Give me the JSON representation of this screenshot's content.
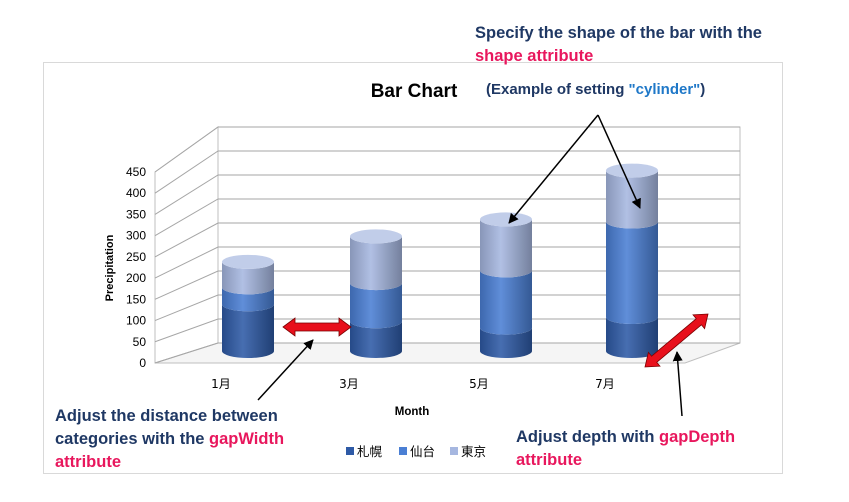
{
  "chart_data": {
    "type": "bar",
    "variant": "stacked-3d-cylinder",
    "title": "Bar Chart",
    "xlabel": "Month",
    "ylabel": "Precipitation",
    "categories": [
      "1月",
      "3月",
      "5月",
      "7月"
    ],
    "series": [
      {
        "name": "札幌",
        "values": [
          110,
          70,
          55,
          80
        ],
        "color": "#2e5aa6"
      },
      {
        "name": "仙台",
        "values": [
          40,
          90,
          135,
          225
        ],
        "color": "#4a7fd4"
      },
      {
        "name": "東京",
        "values": [
          60,
          110,
          120,
          120
        ],
        "color": "#a6b7e0"
      }
    ],
    "ylim": [
      0,
      450
    ],
    "yticks": [
      "0",
      "50",
      "100",
      "150",
      "200",
      "250",
      "300",
      "350",
      "400",
      "450"
    ],
    "grid": true,
    "legend_position": "bottom"
  },
  "annotations": {
    "shape_line1": "Specify the shape of the bar with the",
    "shape_attr": "shape attribute",
    "example_prefix": "(Example of setting ",
    "example_value": "\"cylinder\"",
    "example_suffix": ")",
    "gapwidth_text": "Adjust the distance between categories with the ",
    "gapwidth_attr": "gapWidth",
    "gapwidth_suffix": " attribute",
    "gapdepth_text": "Adjust depth with ",
    "gapdepth_attr": "gapDepth",
    "gapdepth_suffix": " attribute"
  },
  "colors": {
    "annotation_text": "#1f3864",
    "attribute_highlight": "#e8175d",
    "value_highlight": "#1f78c8",
    "arrow_red": "#e8101c"
  }
}
